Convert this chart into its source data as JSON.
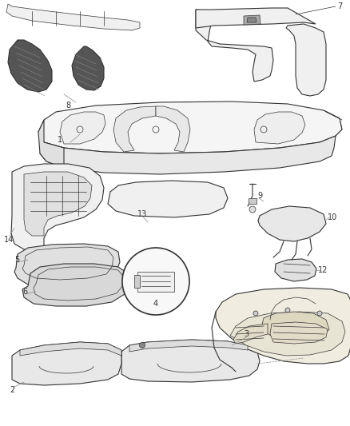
{
  "background_color": "#ffffff",
  "line_color": "#333333",
  "label_color": "#333333",
  "fig_width": 4.38,
  "fig_height": 5.33,
  "dpi": 100,
  "gray_fill": "#d8d8d8",
  "light_fill": "#f0f0f0",
  "dark_fill": "#888888"
}
